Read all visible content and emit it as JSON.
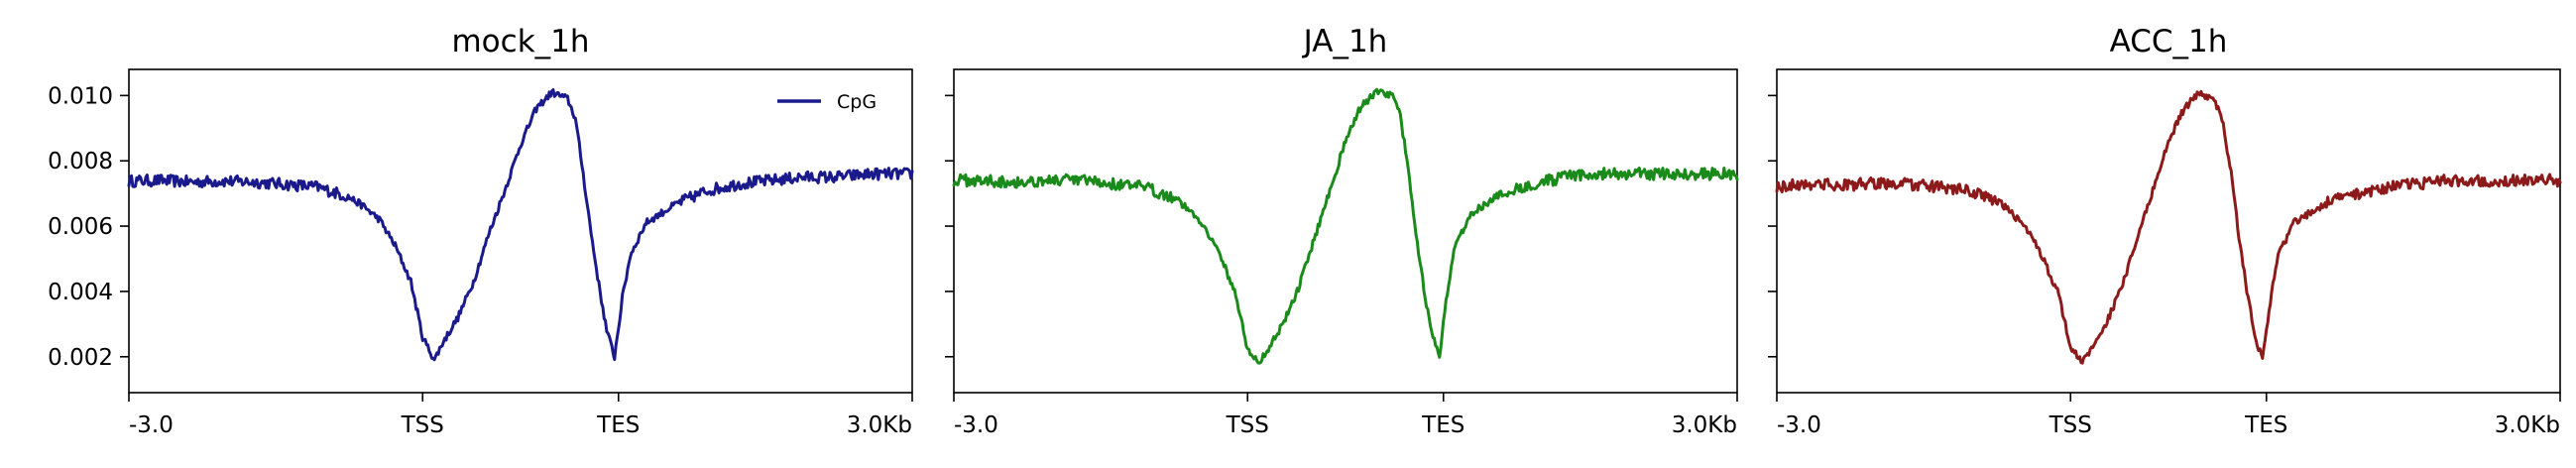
{
  "chart_data": [
    {
      "type": "line",
      "title": "mock_1h",
      "color": "#1a1a8c",
      "legend": {
        "entries": [
          "CpG"
        ],
        "placement": "top-right"
      },
      "x_ticks": [
        "-3.0",
        "TSS",
        "TES",
        "3.0Kb"
      ],
      "y_ticks": [
        "0.010",
        "0.008",
        "0.006",
        "0.004",
        "0.002"
      ],
      "ylim": [
        0.0009,
        0.0108
      ],
      "series": [
        {
          "name": "CpG",
          "x": [
            0,
            0.04,
            0.08,
            0.12,
            0.16,
            0.2,
            0.24,
            0.28,
            0.3,
            0.32,
            0.34,
            0.36,
            0.375,
            0.39,
            0.4,
            0.42,
            0.44,
            0.46,
            0.48,
            0.5,
            0.52,
            0.54,
            0.56,
            0.57,
            0.58,
            0.59,
            0.6,
            0.61,
            0.62,
            0.63,
            0.64,
            0.66,
            0.7,
            0.74,
            0.78,
            0.82,
            0.86,
            0.9,
            0.95,
            1
          ],
          "y": [
            0.00738,
            0.0074,
            0.00735,
            0.00738,
            0.00735,
            0.00728,
            0.0072,
            0.0069,
            0.0066,
            0.0062,
            0.0054,
            0.0043,
            0.0026,
            0.0019,
            0.0024,
            0.0032,
            0.0043,
            0.0058,
            0.0071,
            0.0085,
            0.0096,
            0.0101,
            0.0099,
            0.0093,
            0.0076,
            0.0058,
            0.0042,
            0.0028,
            0.002,
            0.0038,
            0.0051,
            0.0061,
            0.0067,
            0.0071,
            0.0073,
            0.0074,
            0.0075,
            0.0075,
            0.0076,
            0.0076
          ]
        }
      ]
    },
    {
      "type": "line",
      "title": "JA_1h",
      "color": "#1a8a1a",
      "x_ticks": [
        "-3.0",
        "TSS",
        "TES",
        "3.0Kb"
      ],
      "ylim": [
        0.0009,
        0.0108
      ],
      "series": [
        {
          "x": [
            0,
            0.04,
            0.08,
            0.12,
            0.16,
            0.2,
            0.24,
            0.28,
            0.3,
            0.32,
            0.34,
            0.36,
            0.375,
            0.39,
            0.4,
            0.42,
            0.44,
            0.46,
            0.48,
            0.5,
            0.52,
            0.54,
            0.56,
            0.57,
            0.58,
            0.59,
            0.6,
            0.61,
            0.62,
            0.63,
            0.64,
            0.66,
            0.7,
            0.74,
            0.78,
            0.82,
            0.86,
            0.9,
            0.95,
            1
          ],
          "y": [
            0.0074,
            0.0074,
            0.00735,
            0.0074,
            0.0074,
            0.0073,
            0.0072,
            0.0069,
            0.0065,
            0.006,
            0.0051,
            0.0039,
            0.0022,
            0.0018,
            0.0022,
            0.003,
            0.0041,
            0.0056,
            0.0071,
            0.0086,
            0.0097,
            0.0101,
            0.01,
            0.0094,
            0.0077,
            0.0058,
            0.0041,
            0.0027,
            0.002,
            0.004,
            0.0054,
            0.0064,
            0.007,
            0.0073,
            0.0075,
            0.0076,
            0.0076,
            0.0076,
            0.0076,
            0.0076
          ]
        }
      ]
    },
    {
      "type": "line",
      "title": "ACC_1h",
      "color": "#8c1a1a",
      "x_ticks": [
        "-3.0",
        "TSS",
        "TES",
        "3.0Kb"
      ],
      "ylim": [
        0.0009,
        0.0108
      ],
      "series": [
        {
          "x": [
            0,
            0.04,
            0.08,
            0.12,
            0.16,
            0.2,
            0.24,
            0.28,
            0.3,
            0.32,
            0.34,
            0.36,
            0.375,
            0.39,
            0.4,
            0.42,
            0.44,
            0.46,
            0.48,
            0.5,
            0.52,
            0.54,
            0.56,
            0.57,
            0.58,
            0.59,
            0.6,
            0.61,
            0.62,
            0.63,
            0.64,
            0.66,
            0.7,
            0.74,
            0.78,
            0.82,
            0.86,
            0.9,
            0.95,
            1
          ],
          "y": [
            0.0072,
            0.0073,
            0.00725,
            0.0073,
            0.0073,
            0.0072,
            0.0071,
            0.0068,
            0.0064,
            0.0059,
            0.005,
            0.0039,
            0.0023,
            0.0018,
            0.0022,
            0.003,
            0.0041,
            0.0056,
            0.0071,
            0.0086,
            0.0096,
            0.0101,
            0.0098,
            0.0091,
            0.0076,
            0.0057,
            0.004,
            0.0027,
            0.0019,
            0.0037,
            0.0051,
            0.0061,
            0.0067,
            0.007,
            0.0072,
            0.0073,
            0.0074,
            0.0074,
            0.0074,
            0.0074
          ]
        }
      ]
    }
  ]
}
